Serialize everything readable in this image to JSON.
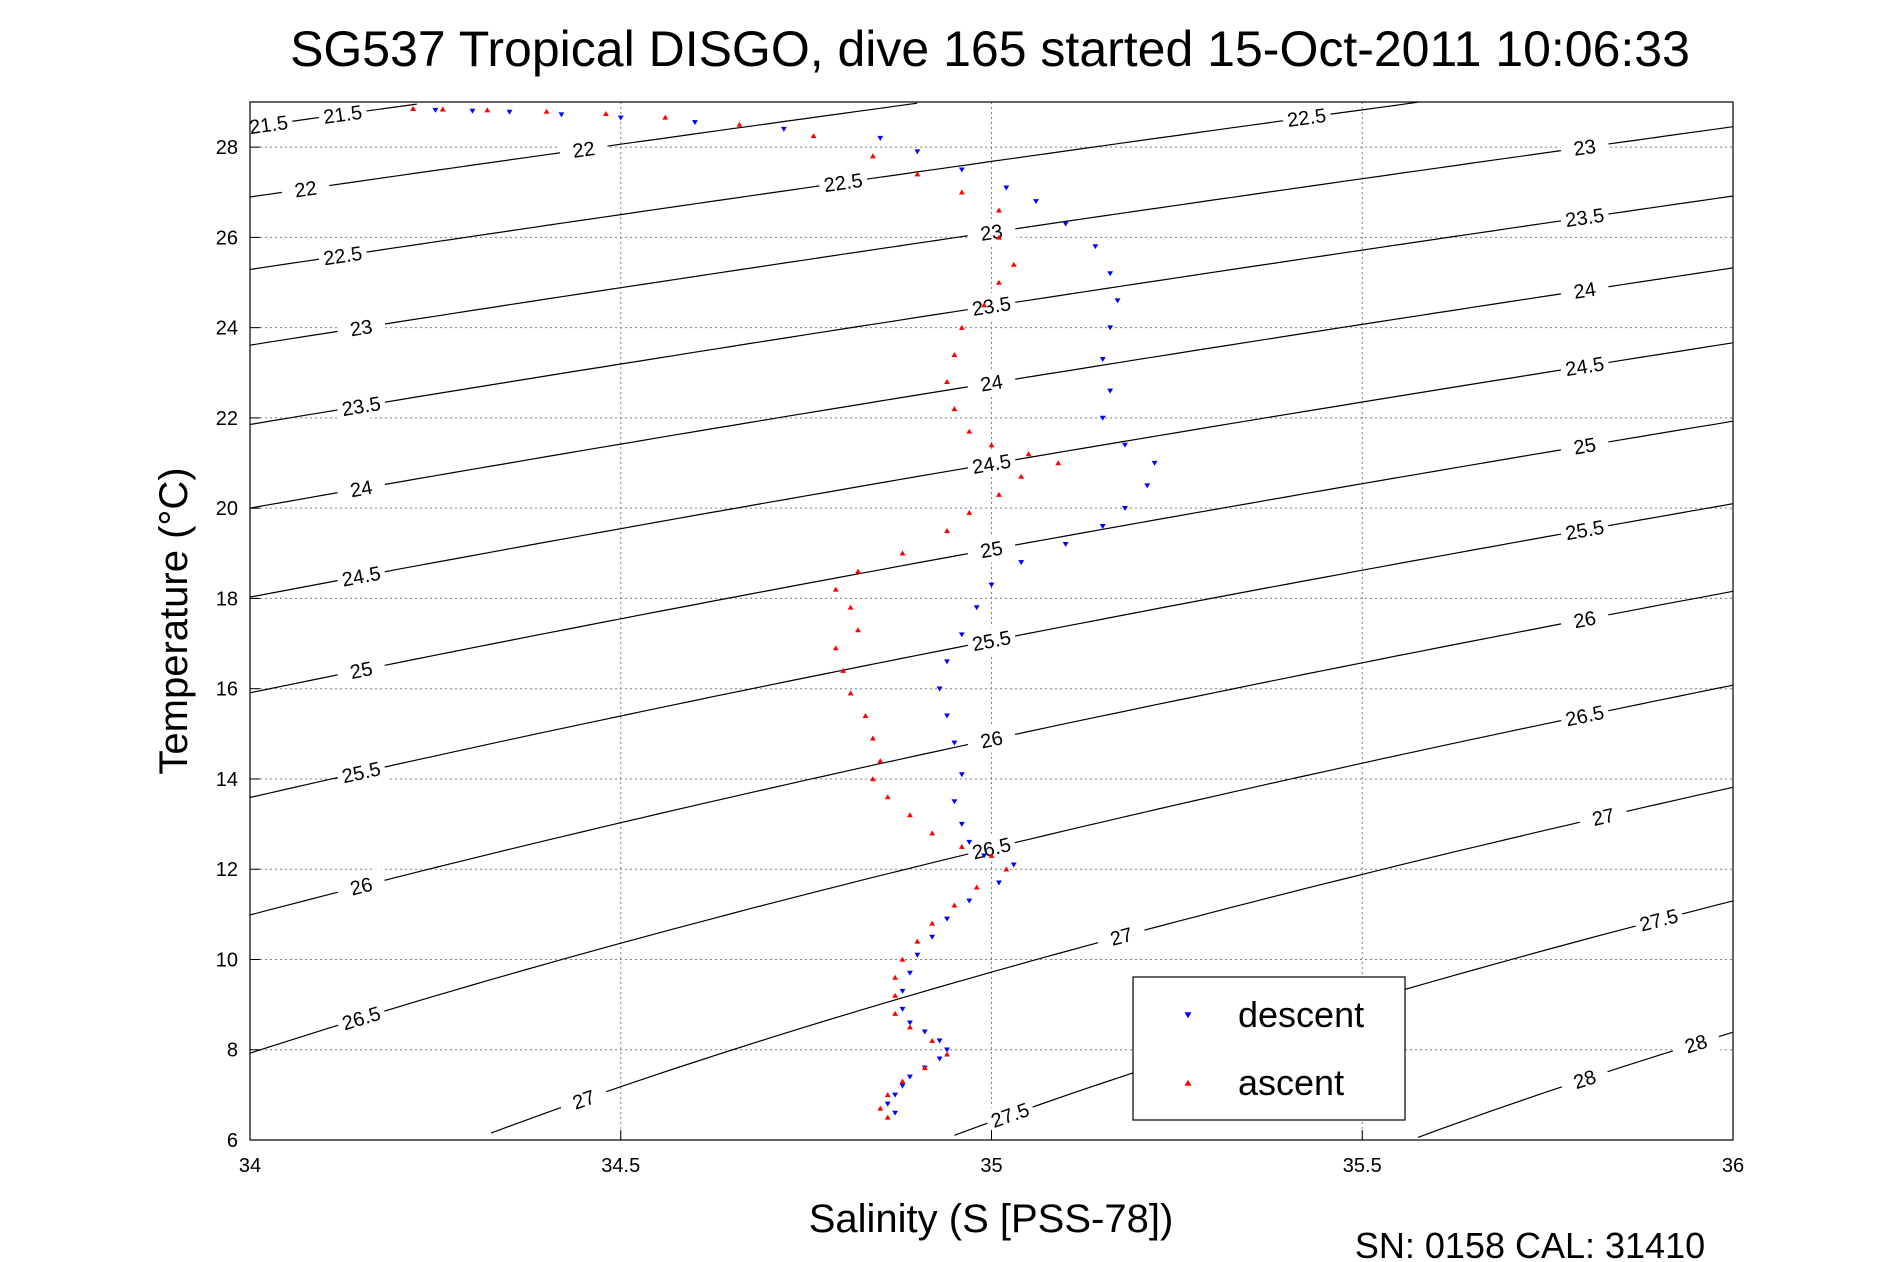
{
  "chart_data": {
    "type": "scatter",
    "title": "SG537 Tropical DISGO, dive 165 started 15-Oct-2011 10:06:33",
    "xlabel": "Salinity (S [PSS-78])",
    "ylabel": "Temperature (°C)",
    "footer": "SN: 0158  CAL: 31410",
    "xlim": [
      34,
      36
    ],
    "ylim": [
      6,
      29
    ],
    "xticks": [
      "34",
      "34.5",
      "35",
      "35.5",
      "36"
    ],
    "yticks": [
      "6",
      "8",
      "10",
      "12",
      "14",
      "16",
      "18",
      "20",
      "22",
      "24",
      "26",
      "28"
    ],
    "grid": true,
    "legend_position": "bottom-right",
    "density_contours": {
      "levels": [
        "21.5",
        "22",
        "22.5",
        "23",
        "23.5",
        "24",
        "24.5",
        "25",
        "25.5",
        "26",
        "26.5",
        "27",
        "27.5",
        "28"
      ],
      "color": "#000000"
    },
    "series": [
      {
        "name": "descent",
        "color": "#0000ff",
        "marker": "triangle-down",
        "points": [
          [
            34.25,
            28.82
          ],
          [
            34.3,
            28.8
          ],
          [
            34.35,
            28.78
          ],
          [
            34.42,
            28.72
          ],
          [
            34.5,
            28.65
          ],
          [
            34.6,
            28.55
          ],
          [
            34.72,
            28.4
          ],
          [
            34.85,
            28.2
          ],
          [
            34.9,
            27.9
          ],
          [
            34.96,
            27.5
          ],
          [
            35.02,
            27.1
          ],
          [
            35.06,
            26.8
          ],
          [
            35.1,
            26.3
          ],
          [
            35.14,
            25.8
          ],
          [
            35.16,
            25.2
          ],
          [
            35.17,
            24.6
          ],
          [
            35.16,
            24.0
          ],
          [
            35.15,
            23.3
          ],
          [
            35.16,
            22.6
          ],
          [
            35.15,
            22.0
          ],
          [
            35.18,
            21.4
          ],
          [
            35.22,
            21.0
          ],
          [
            35.21,
            20.5
          ],
          [
            35.18,
            20.0
          ],
          [
            35.15,
            19.6
          ],
          [
            35.1,
            19.2
          ],
          [
            35.04,
            18.8
          ],
          [
            35.0,
            18.3
          ],
          [
            34.98,
            17.8
          ],
          [
            34.96,
            17.2
          ],
          [
            34.94,
            16.6
          ],
          [
            34.93,
            16.0
          ],
          [
            34.94,
            15.4
          ],
          [
            34.95,
            14.8
          ],
          [
            34.96,
            14.1
          ],
          [
            34.95,
            13.5
          ],
          [
            34.96,
            13.0
          ],
          [
            34.97,
            12.6
          ],
          [
            34.99,
            12.3
          ],
          [
            35.03,
            12.1
          ],
          [
            35.01,
            11.7
          ],
          [
            34.97,
            11.3
          ],
          [
            34.94,
            10.9
          ],
          [
            34.92,
            10.5
          ],
          [
            34.9,
            10.1
          ],
          [
            34.89,
            9.7
          ],
          [
            34.88,
            9.3
          ],
          [
            34.88,
            8.9
          ],
          [
            34.89,
            8.6
          ],
          [
            34.91,
            8.4
          ],
          [
            34.93,
            8.2
          ],
          [
            34.94,
            8.0
          ],
          [
            34.93,
            7.8
          ],
          [
            34.91,
            7.6
          ],
          [
            34.89,
            7.4
          ],
          [
            34.88,
            7.2
          ],
          [
            34.87,
            7.0
          ],
          [
            34.86,
            6.8
          ],
          [
            34.87,
            6.6
          ]
        ]
      },
      {
        "name": "ascent",
        "color": "#ff0000",
        "marker": "triangle-up",
        "points": [
          [
            34.22,
            28.85
          ],
          [
            34.26,
            28.84
          ],
          [
            34.32,
            28.82
          ],
          [
            34.4,
            28.79
          ],
          [
            34.48,
            28.74
          ],
          [
            34.56,
            28.66
          ],
          [
            34.66,
            28.5
          ],
          [
            34.76,
            28.25
          ],
          [
            34.84,
            27.8
          ],
          [
            34.9,
            27.4
          ],
          [
            34.96,
            27.0
          ],
          [
            35.01,
            26.6
          ],
          [
            35.01,
            26.0
          ],
          [
            35.03,
            25.4
          ],
          [
            35.01,
            25.0
          ],
          [
            34.99,
            24.5
          ],
          [
            34.96,
            24.0
          ],
          [
            34.95,
            23.4
          ],
          [
            34.94,
            22.8
          ],
          [
            34.95,
            22.2
          ],
          [
            34.97,
            21.7
          ],
          [
            35.0,
            21.4
          ],
          [
            35.05,
            21.2
          ],
          [
            35.09,
            21.0
          ],
          [
            35.04,
            20.7
          ],
          [
            35.01,
            20.3
          ],
          [
            34.97,
            19.9
          ],
          [
            34.94,
            19.5
          ],
          [
            34.88,
            19.0
          ],
          [
            34.82,
            18.6
          ],
          [
            34.79,
            18.2
          ],
          [
            34.81,
            17.8
          ],
          [
            34.82,
            17.3
          ],
          [
            34.79,
            16.9
          ],
          [
            34.8,
            16.4
          ],
          [
            34.81,
            15.9
          ],
          [
            34.83,
            15.4
          ],
          [
            34.84,
            14.9
          ],
          [
            34.85,
            14.4
          ],
          [
            34.84,
            14.0
          ],
          [
            34.86,
            13.6
          ],
          [
            34.89,
            13.2
          ],
          [
            34.92,
            12.8
          ],
          [
            34.96,
            12.5
          ],
          [
            35.0,
            12.3
          ],
          [
            35.02,
            12.0
          ],
          [
            34.98,
            11.6
          ],
          [
            34.95,
            11.2
          ],
          [
            34.92,
            10.8
          ],
          [
            34.9,
            10.4
          ],
          [
            34.88,
            10.0
          ],
          [
            34.87,
            9.6
          ],
          [
            34.87,
            9.2
          ],
          [
            34.87,
            8.8
          ],
          [
            34.89,
            8.5
          ],
          [
            34.92,
            8.2
          ],
          [
            34.94,
            7.9
          ],
          [
            34.91,
            7.6
          ],
          [
            34.88,
            7.3
          ],
          [
            34.86,
            7.0
          ],
          [
            34.85,
            6.7
          ],
          [
            34.86,
            6.5
          ]
        ]
      }
    ]
  }
}
